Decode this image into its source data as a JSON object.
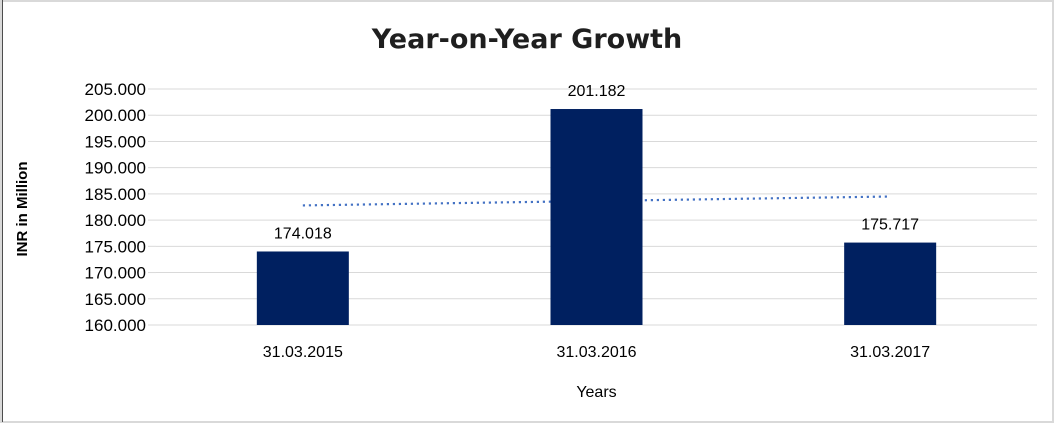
{
  "window": {
    "kind": "embedded-chart-object"
  },
  "chart_data": {
    "type": "bar",
    "title": "Year-on-Year Growth",
    "xlabel": "Years",
    "ylabel": "INR in Million",
    "categories": [
      "31.03.2015",
      "31.03.2016",
      "31.03.2017"
    ],
    "values": [
      174.018,
      201.182,
      175.717
    ],
    "value_labels": [
      "174.018",
      "201.182",
      "175.717"
    ],
    "series_name": "INR in Million",
    "ylim": [
      160,
      205
    ],
    "ytick_step": 5,
    "ytick_labels": [
      "205.000",
      "200.000",
      "195.000",
      "190.000",
      "185.000",
      "180.000",
      "175.000",
      "170.000",
      "165.000",
      "160.000"
    ],
    "grid": "horizontal-on",
    "legend": "none",
    "trendline": {
      "type": "linear",
      "style": "dotted",
      "start_value": 182.8,
      "end_value": 184.5
    }
  },
  "colors": {
    "bar_fill": "#002060",
    "trendline": "#4472C4",
    "gridline": "#d9d9d9",
    "tick_mark": "#d9d9d9",
    "axis_text": "#000000",
    "title_text": "#1f1f1f",
    "frame_border": "#d9d9d9",
    "left_edge": "#4d4d4d",
    "background": "#ffffff"
  }
}
